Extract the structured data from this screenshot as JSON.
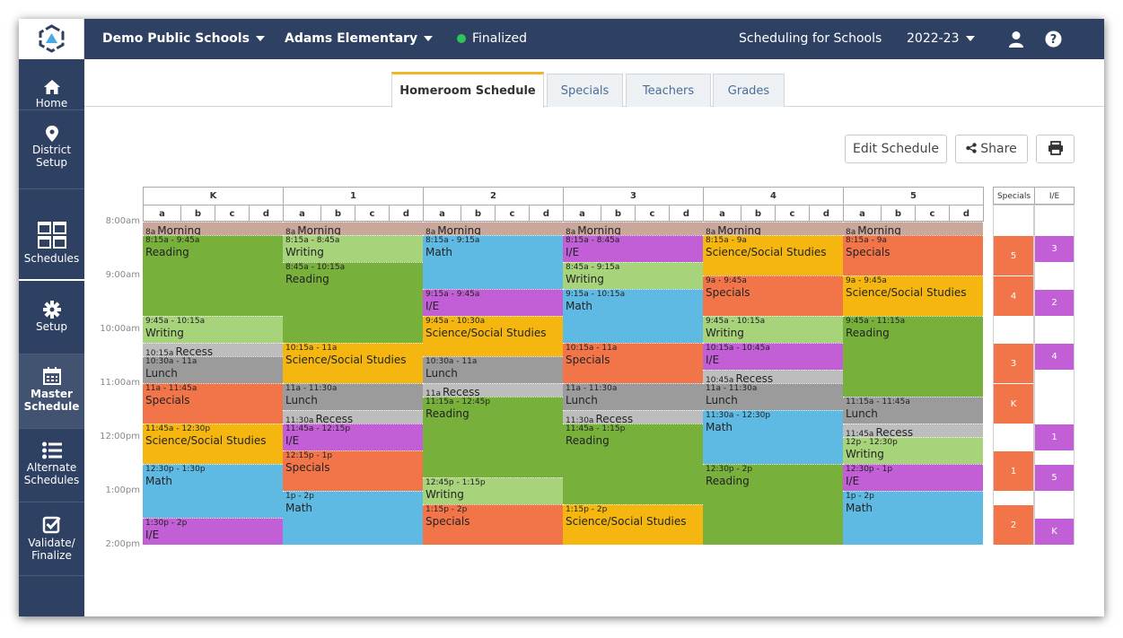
{
  "topbar": {
    "district": "Demo Public Schools",
    "school": "Adams Elementary",
    "status": "Finalized",
    "status_color": "#2ec45a",
    "product": "Scheduling for Schools",
    "year": "2022-23"
  },
  "colors": {
    "morning": "#c9a79a",
    "reading": "#77b03a",
    "writing": "#a7d37b",
    "math": "#5ebae3",
    "ie": "#c25fd6",
    "specials": "#f2754a",
    "science": "#f5b70f",
    "recess": "#bdbdbd",
    "lunch": "#9b9b9b",
    "navy": "#2f4163"
  },
  "sidebar": {
    "items": [
      {
        "label": "Home",
        "icon": "home-icon"
      },
      {
        "label": "District Setup",
        "icon": "location-pin-icon"
      },
      {
        "label": "Schedules",
        "icon": "calendar-grid-icon"
      },
      {
        "label": "Setup",
        "icon": "gear-icon"
      },
      {
        "label": "Master Schedule",
        "icon": "calendar-icon"
      },
      {
        "label": "Alternate Schedules",
        "icon": "list-icon"
      },
      {
        "label": "Validate/ Finalize",
        "icon": "checkbox-icon"
      }
    ]
  },
  "tabs": [
    "Homeroom Schedule",
    "Specials",
    "Teachers",
    "Grades"
  ],
  "buttons": {
    "edit": "Edit Schedule",
    "share": "Share"
  },
  "times": [
    "8:00am",
    "9:00am",
    "10:00am",
    "11:00am",
    "12:00pm",
    "1:00pm",
    "2:00pm"
  ],
  "grades": [
    "K",
    "1",
    "2",
    "3",
    "4",
    "5"
  ],
  "subcols": [
    "a",
    "b",
    "c",
    "d"
  ],
  "side": {
    "headers": [
      "Specials",
      "I/E"
    ],
    "specials": [
      {
        "s": 8.25,
        "e": 9,
        "label": "5"
      },
      {
        "s": 9,
        "e": 9.75,
        "label": "4"
      },
      {
        "s": 10.25,
        "e": 11,
        "label": "3"
      },
      {
        "s": 11,
        "e": 11.75,
        "label": "K"
      },
      {
        "s": 12.25,
        "e": 13,
        "label": "1"
      },
      {
        "s": 13.25,
        "e": 14,
        "label": "2"
      }
    ],
    "ie": [
      {
        "s": 8.25,
        "e": 8.75,
        "label": "3"
      },
      {
        "s": 9.25,
        "e": 9.75,
        "label": "2"
      },
      {
        "s": 10.25,
        "e": 10.75,
        "label": "4"
      },
      {
        "s": 11.75,
        "e": 12.25,
        "label": "1"
      },
      {
        "s": 12.5,
        "e": 13,
        "label": "5"
      },
      {
        "s": 13.5,
        "e": 14,
        "label": "K"
      }
    ]
  },
  "schedule": [
    {
      "grade": "K",
      "blocks": [
        {
          "s": 8,
          "e": 8.25,
          "time": "8a",
          "name": "Morning",
          "type": "morning"
        },
        {
          "s": 8.25,
          "e": 9.75,
          "time": "8:15a - 9:45a",
          "name": "Reading",
          "type": "reading"
        },
        {
          "s": 9.75,
          "e": 10.25,
          "time": "9:45a - 10:15a",
          "name": "Writing",
          "type": "writing"
        },
        {
          "s": 10.25,
          "e": 10.5,
          "time": "10:15a",
          "name": "Recess",
          "type": "recess"
        },
        {
          "s": 10.5,
          "e": 11,
          "time": "10:30a - 11a",
          "name": "Lunch",
          "type": "lunch"
        },
        {
          "s": 11,
          "e": 11.75,
          "time": "11a - 11:45a",
          "name": "Specials",
          "type": "specials"
        },
        {
          "s": 11.75,
          "e": 12.5,
          "time": "11:45a - 12:30p",
          "name": "Science/Social Studies",
          "type": "science"
        },
        {
          "s": 12.5,
          "e": 13.5,
          "time": "12:30p - 1:30p",
          "name": "Math",
          "type": "math"
        },
        {
          "s": 13.5,
          "e": 14,
          "time": "1:30p - 2p",
          "name": "I/E",
          "type": "ie"
        }
      ]
    },
    {
      "grade": "1",
      "blocks": [
        {
          "s": 8,
          "e": 8.25,
          "time": "8a",
          "name": "Morning",
          "type": "morning"
        },
        {
          "s": 8.25,
          "e": 8.75,
          "time": "8:15a - 8:45a",
          "name": "Writing",
          "type": "writing"
        },
        {
          "s": 8.75,
          "e": 10.25,
          "time": "8:45a - 10:15a",
          "name": "Reading",
          "type": "reading"
        },
        {
          "s": 10.25,
          "e": 11,
          "time": "10:15a - 11a",
          "name": "Science/Social Studies",
          "type": "science"
        },
        {
          "s": 11,
          "e": 11.5,
          "time": "11a - 11:30a",
          "name": "Lunch",
          "type": "lunch"
        },
        {
          "s": 11.5,
          "e": 11.75,
          "time": "11:30a",
          "name": "Recess",
          "type": "recess"
        },
        {
          "s": 11.75,
          "e": 12.25,
          "time": "11:45a - 12:15p",
          "name": "I/E",
          "type": "ie"
        },
        {
          "s": 12.25,
          "e": 13,
          "time": "12:15p - 1p",
          "name": "Specials",
          "type": "specials"
        },
        {
          "s": 13,
          "e": 14,
          "time": "1p - 2p",
          "name": "Math",
          "type": "math"
        }
      ]
    },
    {
      "grade": "2",
      "blocks": [
        {
          "s": 8,
          "e": 8.25,
          "time": "8a",
          "name": "Morning",
          "type": "morning"
        },
        {
          "s": 8.25,
          "e": 9.25,
          "time": "8:15a - 9:15a",
          "name": "Math",
          "type": "math"
        },
        {
          "s": 9.25,
          "e": 9.75,
          "time": "9:15a - 9:45a",
          "name": "I/E",
          "type": "ie"
        },
        {
          "s": 9.75,
          "e": 10.5,
          "time": "9:45a - 10:30a",
          "name": "Science/Social Studies",
          "type": "science"
        },
        {
          "s": 10.5,
          "e": 11,
          "time": "10:30a - 11a",
          "name": "Lunch",
          "type": "lunch"
        },
        {
          "s": 11,
          "e": 11.25,
          "time": "11a",
          "name": "Recess",
          "type": "recess"
        },
        {
          "s": 11.25,
          "e": 12.75,
          "time": "11:15a - 12:45p",
          "name": "Reading",
          "type": "reading"
        },
        {
          "s": 12.75,
          "e": 13.25,
          "time": "12:45p - 1:15p",
          "name": "Writing",
          "type": "writing"
        },
        {
          "s": 13.25,
          "e": 14,
          "time": "1:15p - 2p",
          "name": "Specials",
          "type": "specials"
        }
      ]
    },
    {
      "grade": "3",
      "blocks": [
        {
          "s": 8,
          "e": 8.25,
          "time": "8a",
          "name": "Morning",
          "type": "morning"
        },
        {
          "s": 8.25,
          "e": 8.75,
          "time": "8:15a - 8:45a",
          "name": "I/E",
          "type": "ie"
        },
        {
          "s": 8.75,
          "e": 9.25,
          "time": "8:45a - 9:15a",
          "name": "Writing",
          "type": "writing"
        },
        {
          "s": 9.25,
          "e": 10.25,
          "time": "9:15a - 10:15a",
          "name": "Math",
          "type": "math"
        },
        {
          "s": 10.25,
          "e": 11,
          "time": "10:15a - 11a",
          "name": "Specials",
          "type": "specials"
        },
        {
          "s": 11,
          "e": 11.5,
          "time": "11a - 11:30a",
          "name": "Lunch",
          "type": "lunch"
        },
        {
          "s": 11.5,
          "e": 11.75,
          "time": "11:30a",
          "name": "Recess",
          "type": "recess"
        },
        {
          "s": 11.75,
          "e": 13.25,
          "time": "11:45a - 1:15p",
          "name": "Reading",
          "type": "reading"
        },
        {
          "s": 13.25,
          "e": 14,
          "time": "1:15p - 2p",
          "name": "Science/Social Studies",
          "type": "science"
        }
      ]
    },
    {
      "grade": "4",
      "blocks": [
        {
          "s": 8,
          "e": 8.25,
          "time": "8a",
          "name": "Morning",
          "type": "morning"
        },
        {
          "s": 8.25,
          "e": 9,
          "time": "8:15a - 9a",
          "name": "Science/Social Studies",
          "type": "science"
        },
        {
          "s": 9,
          "e": 9.75,
          "time": "9a - 9:45a",
          "name": "Specials",
          "type": "specials"
        },
        {
          "s": 9.75,
          "e": 10.25,
          "time": "9:45a - 10:15a",
          "name": "Writing",
          "type": "writing"
        },
        {
          "s": 10.25,
          "e": 10.75,
          "time": "10:15a - 10:45a",
          "name": "I/E",
          "type": "ie"
        },
        {
          "s": 10.75,
          "e": 11,
          "time": "10:45a",
          "name": "Recess",
          "type": "recess"
        },
        {
          "s": 11,
          "e": 11.5,
          "time": "11a - 11:30a",
          "name": "Lunch",
          "type": "lunch"
        },
        {
          "s": 11.5,
          "e": 12.5,
          "time": "11:30a - 12:30p",
          "name": "Math",
          "type": "math"
        },
        {
          "s": 12.5,
          "e": 14,
          "time": "12:30p - 2p",
          "name": "Reading",
          "type": "reading"
        }
      ]
    },
    {
      "grade": "5",
      "blocks": [
        {
          "s": 8,
          "e": 8.25,
          "time": "8a",
          "name": "Morning",
          "type": "morning"
        },
        {
          "s": 8.25,
          "e": 9,
          "time": "8:15a - 9a",
          "name": "Specials",
          "type": "specials"
        },
        {
          "s": 9,
          "e": 9.75,
          "time": "9a - 9:45a",
          "name": "Science/Social Studies",
          "type": "science"
        },
        {
          "s": 9.75,
          "e": 11.25,
          "time": "9:45a - 11:15a",
          "name": "Reading",
          "type": "reading"
        },
        {
          "s": 11.25,
          "e": 11.75,
          "time": "11:15a - 11:45a",
          "name": "Lunch",
          "type": "lunch"
        },
        {
          "s": 11.75,
          "e": 12,
          "time": "11:45a",
          "name": "Recess",
          "type": "recess"
        },
        {
          "s": 12,
          "e": 12.5,
          "time": "12p - 12:30p",
          "name": "Writing",
          "type": "writing"
        },
        {
          "s": 12.5,
          "e": 13,
          "time": "12:30p - 1p",
          "name": "I/E",
          "type": "ie"
        },
        {
          "s": 13,
          "e": 14,
          "time": "1p - 2p",
          "name": "Math",
          "type": "math"
        }
      ]
    }
  ]
}
